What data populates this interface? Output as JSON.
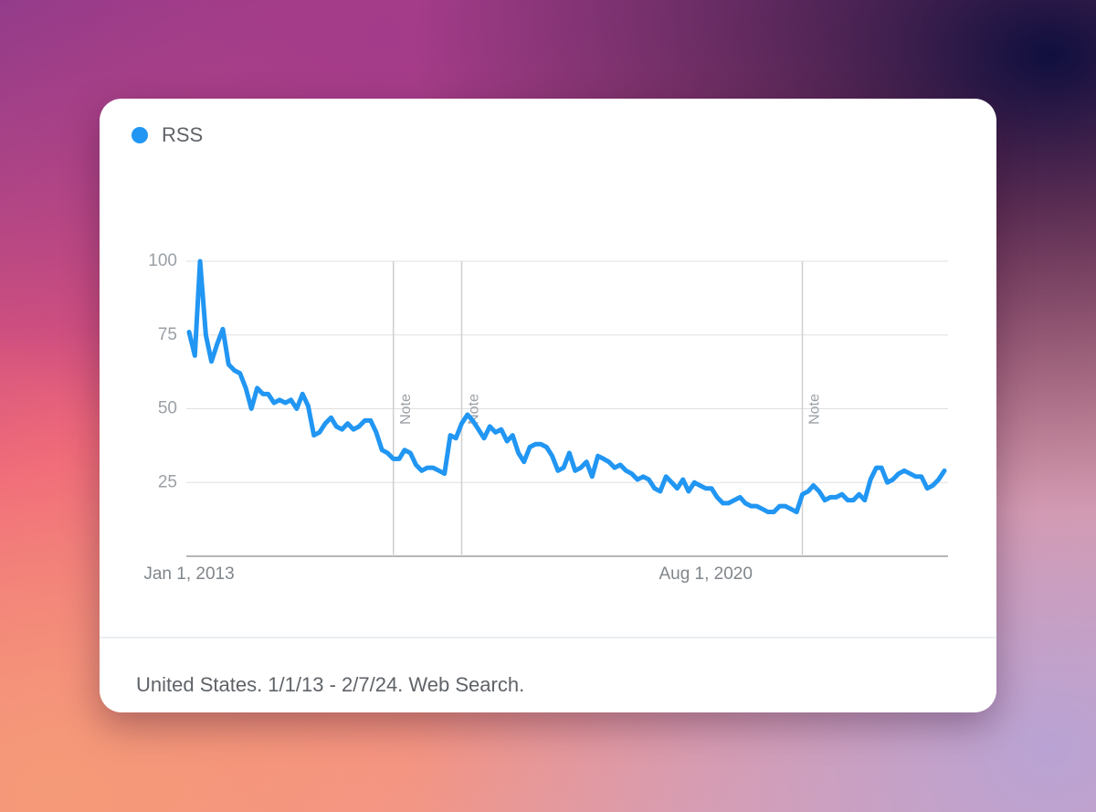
{
  "chart_data": {
    "type": "line",
    "x": [
      "2013-01-01",
      "2013-02-01",
      "2013-03-01",
      "2013-04-01",
      "2013-05-01",
      "2013-06-01",
      "2013-07-01",
      "2013-08-01",
      "2013-09-01",
      "2013-10-01",
      "2013-11-01",
      "2013-12-01",
      "2014-01-01",
      "2014-02-01",
      "2014-03-01",
      "2014-04-01",
      "2014-05-01",
      "2014-06-01",
      "2014-07-01",
      "2014-08-01",
      "2014-09-01",
      "2014-10-01",
      "2014-11-01",
      "2014-12-01",
      "2015-01-01",
      "2015-02-01",
      "2015-03-01",
      "2015-04-01",
      "2015-05-01",
      "2015-06-01",
      "2015-07-01",
      "2015-08-01",
      "2015-09-01",
      "2015-10-01",
      "2015-11-01",
      "2015-12-01",
      "2016-01-01",
      "2016-02-01",
      "2016-03-01",
      "2016-04-01",
      "2016-05-01",
      "2016-06-01",
      "2016-07-01",
      "2016-08-01",
      "2016-09-01",
      "2016-10-01",
      "2016-11-01",
      "2016-12-01",
      "2017-01-01",
      "2017-02-01",
      "2017-03-01",
      "2017-04-01",
      "2017-05-01",
      "2017-06-01",
      "2017-07-01",
      "2017-08-01",
      "2017-09-01",
      "2017-10-01",
      "2017-11-01",
      "2017-12-01",
      "2018-01-01",
      "2018-02-01",
      "2018-03-01",
      "2018-04-01",
      "2018-05-01",
      "2018-06-01",
      "2018-07-01",
      "2018-08-01",
      "2018-09-01",
      "2018-10-01",
      "2018-11-01",
      "2018-12-01",
      "2019-01-01",
      "2019-02-01",
      "2019-03-01",
      "2019-04-01",
      "2019-05-01",
      "2019-06-01",
      "2019-07-01",
      "2019-08-01",
      "2019-09-01",
      "2019-10-01",
      "2019-11-01",
      "2019-12-01",
      "2020-01-01",
      "2020-02-01",
      "2020-03-01",
      "2020-04-01",
      "2020-05-01",
      "2020-06-01",
      "2020-07-01",
      "2020-08-01",
      "2020-09-01",
      "2020-10-01",
      "2020-11-01",
      "2020-12-01",
      "2021-01-01",
      "2021-02-01",
      "2021-03-01",
      "2021-04-01",
      "2021-05-01",
      "2021-06-01",
      "2021-07-01",
      "2021-08-01",
      "2021-09-01",
      "2021-10-01",
      "2021-11-01",
      "2021-12-01",
      "2022-01-01",
      "2022-02-01",
      "2022-03-01",
      "2022-04-01",
      "2022-05-01",
      "2022-06-01",
      "2022-07-01",
      "2022-08-01",
      "2022-09-01",
      "2022-10-01",
      "2022-11-01",
      "2022-12-01",
      "2023-01-01",
      "2023-02-01",
      "2023-03-01",
      "2023-04-01",
      "2023-05-01",
      "2023-06-01",
      "2023-07-01",
      "2023-08-01",
      "2023-09-01",
      "2023-10-01",
      "2023-11-01",
      "2023-12-01",
      "2024-01-01",
      "2024-02-01"
    ],
    "series": [
      {
        "name": "RSS",
        "color": "#2196f3",
        "values": [
          76,
          68,
          100,
          75,
          66,
          72,
          77,
          65,
          63,
          62,
          57,
          50,
          57,
          55,
          55,
          52,
          53,
          52,
          53,
          50,
          55,
          51,
          41,
          42,
          45,
          47,
          44,
          43,
          45,
          43,
          44,
          46,
          46,
          42,
          36,
          35,
          33,
          33,
          36,
          35,
          31,
          29,
          30,
          30,
          29,
          28,
          41,
          40,
          45,
          48,
          46,
          43,
          40,
          44,
          42,
          43,
          39,
          41,
          35,
          32,
          37,
          38,
          38,
          37,
          34,
          29,
          30,
          35,
          29,
          30,
          32,
          27,
          34,
          33,
          32,
          30,
          31,
          29,
          28,
          26,
          27,
          26,
          23,
          22,
          27,
          25,
          23,
          26,
          22,
          25,
          24,
          23,
          23,
          20,
          18,
          18,
          19,
          20,
          18,
          17,
          17,
          16,
          15,
          15,
          17,
          17,
          16,
          15,
          21,
          22,
          24,
          22,
          19,
          20,
          20,
          21,
          19,
          19,
          21,
          19,
          26,
          30,
          30,
          25,
          26,
          28,
          29,
          28,
          27,
          27,
          23,
          24,
          26,
          29
        ]
      }
    ],
    "xlim": [
      "2013-01-01",
      "2024-02-01"
    ],
    "xticks": [
      {
        "value": "2013-01-01",
        "label": "Jan 1, 2013"
      },
      {
        "value": "2020-08-01",
        "label": "Aug 1, 2020"
      }
    ],
    "ylim": [
      0,
      100
    ],
    "yticks": [
      25,
      50,
      75,
      100
    ],
    "grid": true,
    "annotations": [
      {
        "x": "2016-01-01",
        "text": "Note"
      },
      {
        "x": "2017-01-01",
        "text": "Note"
      },
      {
        "x": "2022-01-01",
        "text": "Note"
      }
    ],
    "footer": "United States. 1/1/13 - 2/7/24. Web Search."
  }
}
